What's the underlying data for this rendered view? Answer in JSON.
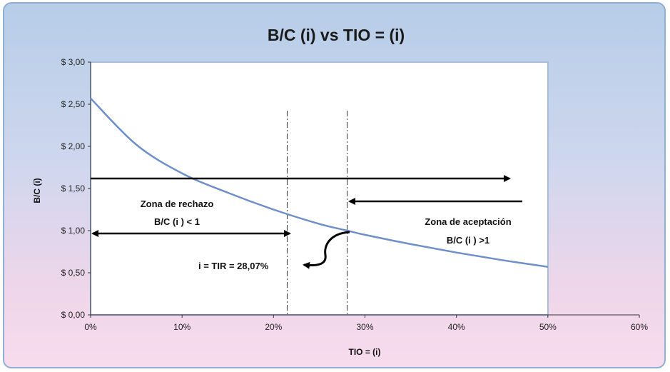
{
  "chart_data": {
    "type": "line",
    "title": "B/C (i) vs TIO = (i)",
    "xlabel": "TIO = (i)",
    "ylabel": "B/C (i)",
    "xlim": [
      0,
      60
    ],
    "ylim": [
      0,
      3
    ],
    "x_ticks": [
      "0%",
      "10%",
      "20%",
      "30%",
      "40%",
      "50%",
      "60%"
    ],
    "y_ticks": [
      "$ 0,00",
      "$ 0,50",
      "$ 1,00",
      "$ 1,50",
      "$ 2,00",
      "$ 2,50",
      "$ 3,00"
    ],
    "grid": false,
    "series": [
      {
        "color": "#6f8fc8",
        "x": [
          0,
          5,
          10,
          15,
          20,
          25,
          28.07,
          30,
          35,
          40,
          45,
          50
        ],
        "y": [
          2.57,
          2.02,
          1.68,
          1.45,
          1.25,
          1.08,
          1.0,
          0.95,
          0.84,
          0.74,
          0.65,
          0.57
        ]
      }
    ],
    "vertical_lines": [
      21.5,
      28.07
    ],
    "annotations": {
      "reject_title": "Zona de rechazo",
      "reject_cond": "B/C (i ) < 1",
      "accept_title": "Zona de aceptación",
      "accept_cond": "B/C (i ) >1",
      "tir": "i = TIR = 28,07%"
    }
  }
}
